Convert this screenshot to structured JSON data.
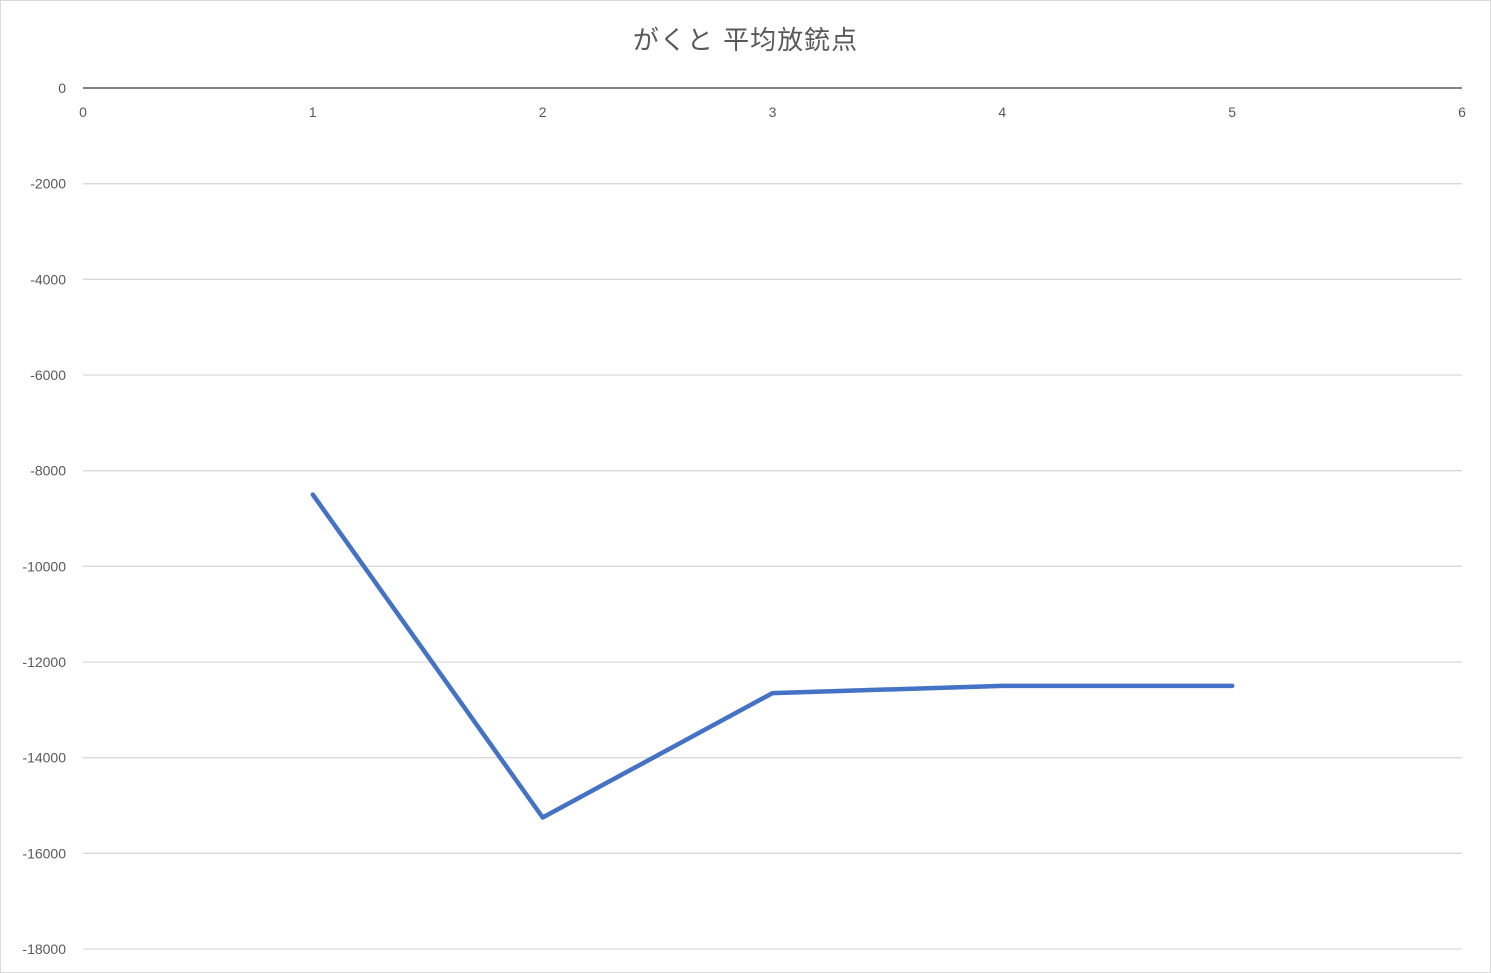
{
  "chart_data": {
    "type": "line",
    "title": "がくと 平均放銃点",
    "xlabel": "",
    "ylabel": "",
    "xlim": [
      0,
      6
    ],
    "ylim": [
      -18000,
      0
    ],
    "x_ticks": [
      0,
      1,
      2,
      3,
      4,
      5,
      6
    ],
    "y_ticks": [
      0,
      -2000,
      -4000,
      -6000,
      -8000,
      -10000,
      -12000,
      -14000,
      -16000,
      -18000
    ],
    "grid": true,
    "legend": "none",
    "series": [
      {
        "x": [
          1,
          2,
          3,
          4,
          5
        ],
        "y": [
          -8500,
          -15250,
          -12650,
          -12500,
          -12500
        ],
        "color": "#4472c4"
      }
    ],
    "colors": {
      "line": "#4472c4",
      "grid": "#d9d9d9",
      "axis": "#595959",
      "text": "#595959"
    }
  }
}
